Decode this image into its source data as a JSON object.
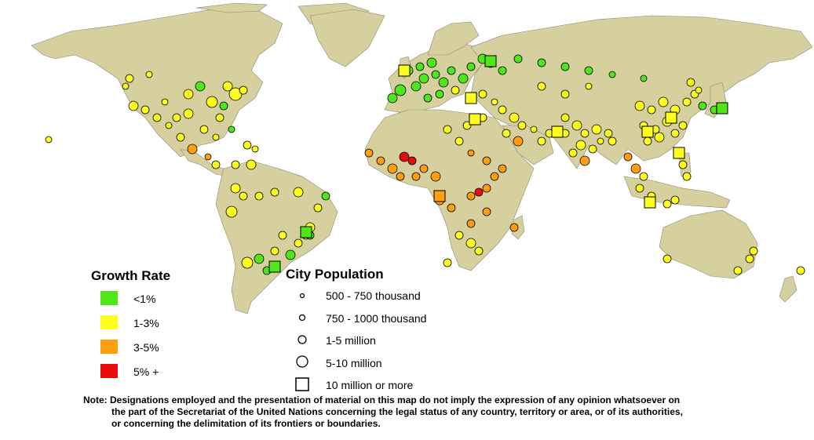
{
  "colors": {
    "ocean": "#ffffff",
    "land": "#d6cf9e",
    "border": "#8a8a7a",
    "growth_lt1": "#4fe61a",
    "growth_1_3": "#ffff1f",
    "growth_3_5": "#ff9e0f",
    "growth_5plus": "#e80d0d"
  },
  "legend_growth": {
    "title": "Growth Rate",
    "items": [
      {
        "label": "<1%",
        "color": "#4fe61a"
      },
      {
        "label": "1-3%",
        "color": "#ffff1f"
      },
      {
        "label": "3-5%",
        "color": "#ff9e0f"
      },
      {
        "label": "5% +",
        "color": "#e80d0d"
      }
    ]
  },
  "legend_population": {
    "title": "City Population",
    "items": [
      {
        "label": "500 - 750  thousand",
        "symbol": "circle-xs"
      },
      {
        "label": "750 - 1000  thousand",
        "symbol": "circle-sm"
      },
      {
        "label": "1-5 million",
        "symbol": "circle-md"
      },
      {
        "label": "5-10 million",
        "symbol": "circle-lg"
      },
      {
        "label": "10 million or more",
        "symbol": "square"
      }
    ]
  },
  "note": {
    "line1": "Note: Designations employed and the presentation of material on this map do not imply the expression of any opinion whatsoever on",
    "line2": "the part of the Secretariat of the United Nations concerning the legal status of any country, territory or area, or of its authorities,",
    "line3": "or concerning the delimitation of its frontiers or boundaries."
  }
}
